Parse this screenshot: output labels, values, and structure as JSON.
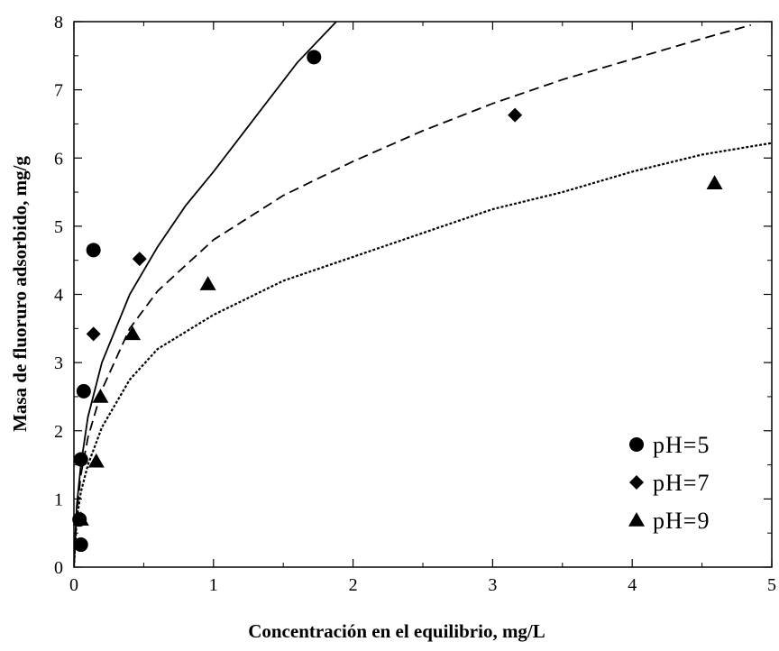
{
  "chart_data": {
    "type": "scatter",
    "title": "",
    "xlabel": "Concentración en el equilibrio, mg/L",
    "ylabel": "Masa de fluoruro adsorbido, mg/g",
    "xlim": [
      0,
      5
    ],
    "ylim": [
      0,
      8
    ],
    "x_ticks": [
      "0",
      "1",
      "2",
      "3",
      "4",
      "5"
    ],
    "y_ticks": [
      "0",
      "1",
      "2",
      "3",
      "4",
      "5",
      "6",
      "7",
      "8"
    ],
    "grid": false,
    "legend_position": "bottom-right",
    "series": [
      {
        "name": "pH=5",
        "marker": "circle",
        "line_style": "solid",
        "points": [
          [
            0.05,
            0.33
          ],
          [
            0.04,
            0.7
          ],
          [
            0.05,
            1.58
          ],
          [
            0.07,
            2.58
          ],
          [
            0.14,
            4.65
          ],
          [
            1.72,
            7.48
          ]
        ],
        "fit_curve": [
          [
            0.0,
            0.0
          ],
          [
            0.02,
            0.9
          ],
          [
            0.05,
            1.5
          ],
          [
            0.1,
            2.2
          ],
          [
            0.2,
            3.0
          ],
          [
            0.4,
            4.0
          ],
          [
            0.6,
            4.7
          ],
          [
            0.8,
            5.3
          ],
          [
            1.0,
            5.8
          ],
          [
            1.3,
            6.6
          ],
          [
            1.6,
            7.4
          ],
          [
            1.88,
            8.0
          ]
        ]
      },
      {
        "name": "pH=7",
        "marker": "diamond",
        "line_style": "dashed",
        "points": [
          [
            0.14,
            3.42
          ],
          [
            0.47,
            4.52
          ],
          [
            3.16,
            6.63
          ]
        ],
        "fit_curve": [
          [
            0.0,
            0.0
          ],
          [
            0.02,
            0.8
          ],
          [
            0.05,
            1.35
          ],
          [
            0.1,
            1.9
          ],
          [
            0.2,
            2.6
          ],
          [
            0.4,
            3.5
          ],
          [
            0.6,
            4.05
          ],
          [
            1.0,
            4.8
          ],
          [
            1.5,
            5.45
          ],
          [
            2.0,
            5.95
          ],
          [
            2.5,
            6.4
          ],
          [
            3.0,
            6.8
          ],
          [
            3.5,
            7.15
          ],
          [
            4.0,
            7.45
          ],
          [
            4.5,
            7.75
          ],
          [
            4.85,
            7.95
          ]
        ]
      },
      {
        "name": "pH=9",
        "marker": "triangle",
        "line_style": "dotted",
        "points": [
          [
            0.05,
            0.7
          ],
          [
            0.16,
            1.55
          ],
          [
            0.19,
            2.5
          ],
          [
            0.42,
            3.42
          ],
          [
            0.96,
            4.15
          ],
          [
            4.59,
            5.63
          ]
        ],
        "fit_curve": [
          [
            0.0,
            0.0
          ],
          [
            0.02,
            0.7
          ],
          [
            0.05,
            1.1
          ],
          [
            0.1,
            1.5
          ],
          [
            0.2,
            2.05
          ],
          [
            0.4,
            2.75
          ],
          [
            0.6,
            3.2
          ],
          [
            1.0,
            3.7
          ],
          [
            1.5,
            4.2
          ],
          [
            2.0,
            4.55
          ],
          [
            2.5,
            4.9
          ],
          [
            3.0,
            5.25
          ],
          [
            3.5,
            5.5
          ],
          [
            4.0,
            5.8
          ],
          [
            4.5,
            6.05
          ],
          [
            5.0,
            6.22
          ]
        ]
      }
    ]
  }
}
